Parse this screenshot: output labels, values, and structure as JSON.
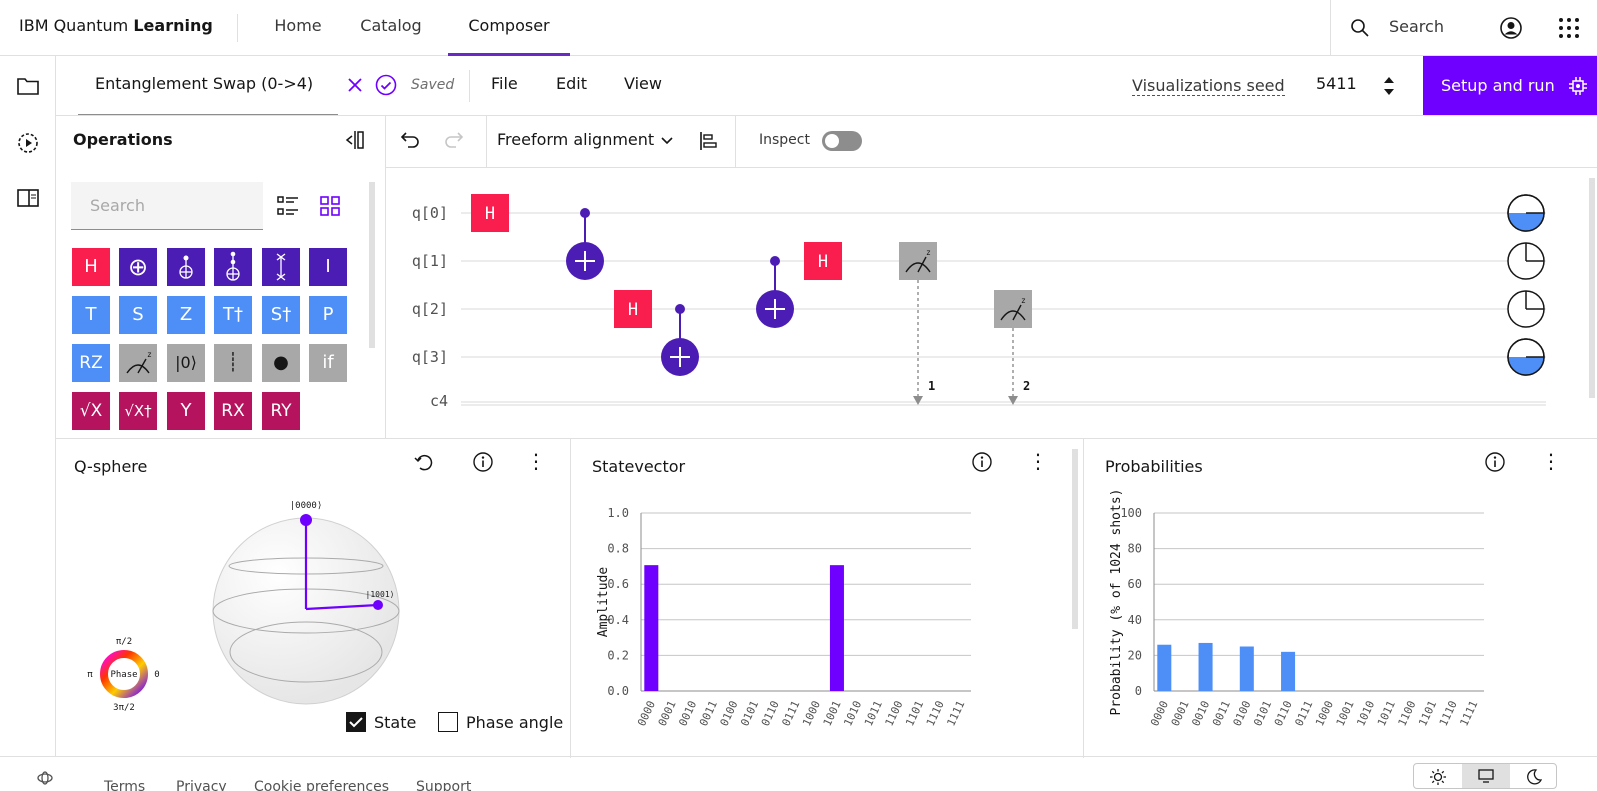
{
  "header": {
    "brand_prefix": "IBM Quantum ",
    "brand_bold": "Learning",
    "nav": [
      "Home",
      "Catalog",
      "Composer"
    ],
    "search_label": "Search"
  },
  "tab": {
    "title": "Entanglement Swap (0->4)",
    "saved": "Saved",
    "menus": [
      "File",
      "Edit",
      "View"
    ],
    "seed_label": "Visualizations seed",
    "seed_value": "5411",
    "setup_label": "Setup and run"
  },
  "operations": {
    "title": "Operations",
    "search_placeholder": "Search",
    "gates": [
      [
        "H",
        "⊕",
        "",
        "",
        "",
        "I"
      ],
      [
        "T",
        "S",
        "Z",
        "T†",
        "S†",
        "P"
      ],
      [
        "RZ",
        "",
        "|0⟩",
        "┊",
        "●",
        "if"
      ],
      [
        "√X",
        "√X†",
        "Y",
        "RX",
        "RY",
        ""
      ]
    ]
  },
  "toolbar": {
    "alignment": "Freeform alignment",
    "inspect": "Inspect"
  },
  "circuit": {
    "qubits": [
      "q[0]",
      "q[1]",
      "q[2]",
      "q[3]"
    ],
    "classical": "c4",
    "gate_h": "H",
    "measure_labels": [
      "1",
      "2"
    ]
  },
  "qsphere": {
    "title": "Q-sphere",
    "state_top": "|0000⟩",
    "state_side": "|1001⟩",
    "phase": {
      "center": "Phase",
      "top": "π/2",
      "left": "π",
      "right": "0",
      "bottom": "3π/2"
    },
    "state_label": "State",
    "phase_angle_label": "Phase angle"
  },
  "statevector": {
    "title": "Statevector"
  },
  "probabilities": {
    "title": "Probabilities"
  },
  "chart_data": [
    {
      "type": "bar",
      "title": "Statevector",
      "ylabel": "Amplitude",
      "ylim": [
        0,
        1.0
      ],
      "yticks": [
        "0.0",
        "0.2",
        "0.4",
        "0.6",
        "0.8",
        "1.0"
      ],
      "categories": [
        "0000",
        "0001",
        "0010",
        "0011",
        "0100",
        "0101",
        "0110",
        "0111",
        "1000",
        "1001",
        "1010",
        "1011",
        "1100",
        "1101",
        "1110",
        "1111"
      ],
      "values": [
        0.707,
        0,
        0,
        0,
        0,
        0,
        0,
        0,
        0,
        0.707,
        0,
        0,
        0,
        0,
        0,
        0
      ],
      "color": "#6f00ff"
    },
    {
      "type": "bar",
      "title": "Probabilities",
      "ylabel": "Probability (% of 1024 shots)",
      "ylim": [
        0,
        100
      ],
      "yticks": [
        "0",
        "20",
        "40",
        "60",
        "80",
        "100"
      ],
      "categories": [
        "0000",
        "0001",
        "0010",
        "0011",
        "0100",
        "0101",
        "0110",
        "0111",
        "1000",
        "1001",
        "1010",
        "1011",
        "1100",
        "1101",
        "1110",
        "1111"
      ],
      "values": [
        26,
        0,
        27,
        0,
        25,
        0,
        22,
        0,
        0,
        0,
        0,
        0,
        0,
        0,
        0,
        0
      ],
      "color": "#4d8ff7"
    }
  ],
  "footer": {
    "links": [
      "Terms",
      "Privacy",
      "Cookie preferences",
      "Support"
    ]
  }
}
